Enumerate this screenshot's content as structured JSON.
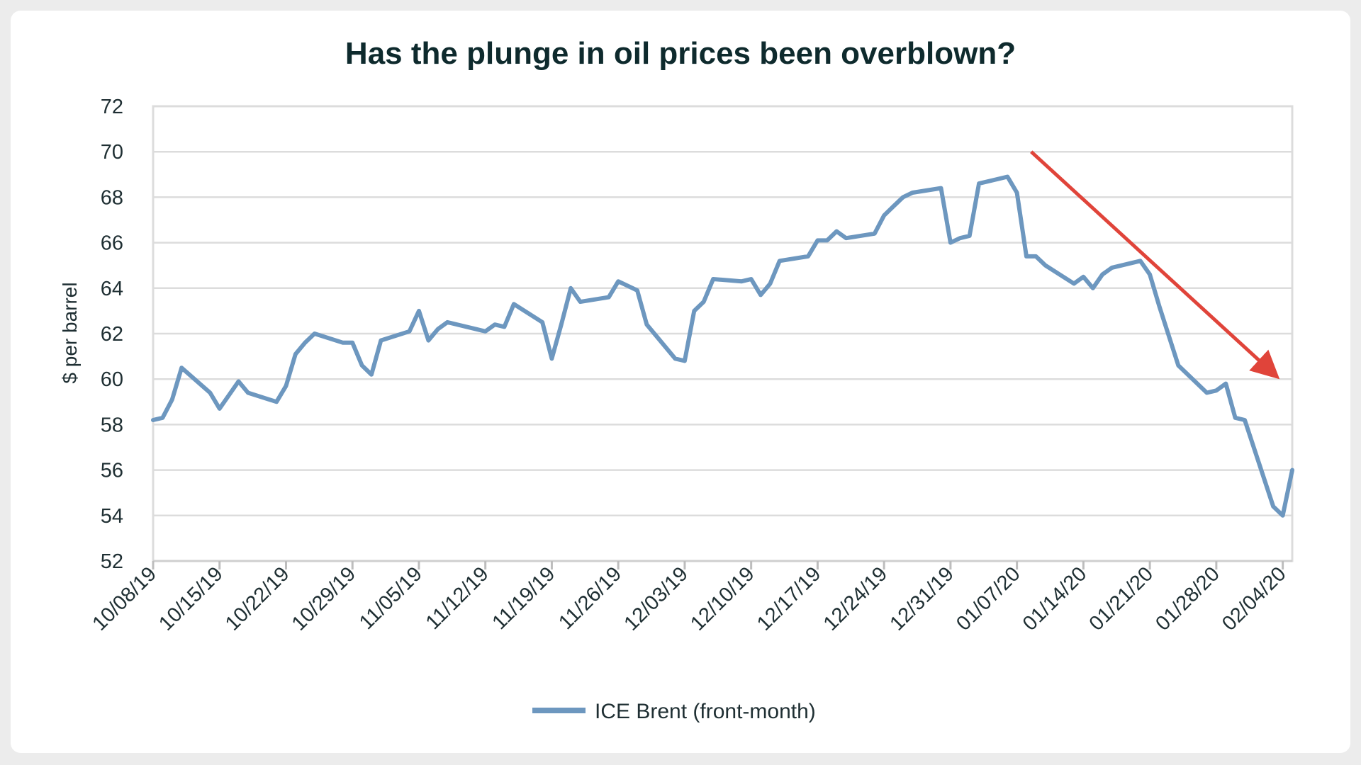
{
  "chart_data": {
    "type": "line",
    "title": "Has the plunge in oil prices been overblown?",
    "xlabel": "",
    "ylabel": "$ per barrel",
    "ylim": [
      52,
      72
    ],
    "yticks": [
      "52",
      "54",
      "56",
      "58",
      "60",
      "62",
      "64",
      "66",
      "68",
      "70",
      "72"
    ],
    "xtick_labels": [
      "10/08/19",
      "10/15/19",
      "10/22/19",
      "10/29/19",
      "11/05/19",
      "11/12/19",
      "11/19/19",
      "11/26/19",
      "12/03/19",
      "12/10/19",
      "12/17/19",
      "12/24/19",
      "12/31/19",
      "01/07/20",
      "01/14/20",
      "01/21/20",
      "01/28/20",
      "02/04/20"
    ],
    "grid": true,
    "legend": "bottom-center",
    "series": [
      {
        "name": "ICE Brent (front-month)",
        "color": "#6d97bf",
        "x": [
          0,
          1,
          2,
          3,
          6,
          7,
          8,
          9,
          10,
          13,
          14,
          15,
          16,
          17,
          20,
          21,
          22,
          23,
          24,
          27,
          28,
          29,
          30,
          31,
          34,
          35,
          36,
          37,
          38,
          41,
          42,
          43,
          44,
          45,
          48,
          49,
          50,
          51,
          52,
          55,
          56,
          57,
          58,
          59,
          62,
          63,
          64,
          65,
          66,
          69,
          70,
          71,
          72,
          73,
          76,
          77,
          78,
          79,
          80,
          83,
          84,
          85,
          86,
          87,
          90,
          91,
          92,
          93,
          94,
          97,
          98,
          99,
          100,
          101,
          104,
          105,
          106,
          107,
          108,
          111,
          112,
          113,
          114,
          115,
          118,
          119,
          120
        ],
        "values": [
          58.2,
          58.3,
          59.1,
          60.5,
          59.4,
          58.7,
          59.3,
          59.9,
          59.4,
          59.0,
          59.7,
          61.1,
          61.6,
          62.0,
          61.6,
          61.6,
          60.6,
          60.2,
          61.7,
          62.1,
          63.0,
          61.7,
          62.2,
          62.5,
          62.2,
          62.1,
          62.4,
          62.3,
          63.3,
          62.5,
          60.9,
          62.4,
          64.0,
          63.4,
          63.6,
          64.3,
          64.1,
          63.9,
          62.4,
          60.9,
          60.8,
          63.0,
          63.4,
          64.4,
          64.3,
          64.4,
          63.7,
          64.2,
          65.2,
          65.4,
          66.1,
          66.1,
          66.5,
          66.2,
          66.4,
          67.2,
          67.6,
          68.0,
          68.2,
          68.4,
          66.0,
          66.2,
          66.3,
          68.6,
          68.9,
          68.2,
          65.4,
          65.4,
          65.0,
          64.2,
          64.5,
          64.0,
          64.6,
          64.9,
          65.2,
          64.6,
          63.2,
          61.9,
          60.6,
          59.4,
          59.5,
          59.8,
          58.3,
          58.2,
          54.4,
          54.0,
          56.0
        ]
      }
    ],
    "annotations": [
      {
        "type": "arrow",
        "color": "#e0443a",
        "from": {
          "x": 92.5,
          "y": 70.0
        },
        "to": {
          "x": 118.4,
          "y": 60.1
        }
      }
    ]
  }
}
